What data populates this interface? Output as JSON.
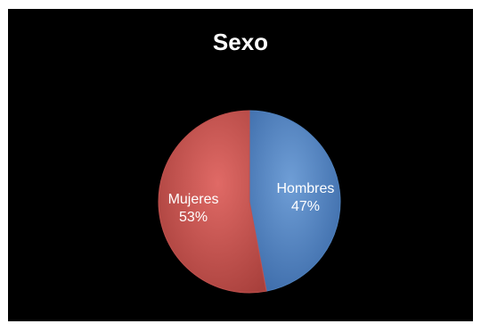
{
  "chart_data": {
    "type": "pie",
    "title": "Sexo",
    "categories": [
      "Hombres",
      "Mujeres"
    ],
    "values": [
      47,
      53
    ],
    "value_labels": [
      "47%",
      "53%"
    ],
    "colors": [
      "#4f81bd",
      "#c0504d"
    ],
    "background": "#000000",
    "legend": "none"
  }
}
